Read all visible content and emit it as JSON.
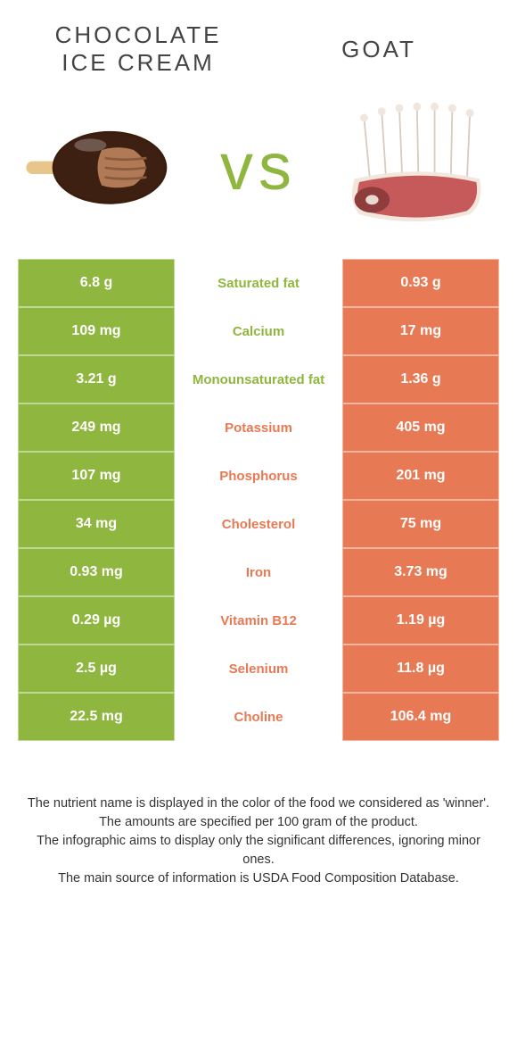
{
  "titles": {
    "left": "CHOCOLATE\nICE CREAM",
    "right": "GOAT"
  },
  "vs_text": "vs",
  "colors": {
    "left_bg": "#8fb63f",
    "right_bg": "#e77a54",
    "left_text_mid": "#8fb63f",
    "right_text_mid": "#e77a54",
    "vs_color": "#8fb63f"
  },
  "rows": [
    {
      "left": "6.8 g",
      "label": "Saturated fat",
      "right": "0.93 g",
      "winner": "left"
    },
    {
      "left": "109 mg",
      "label": "Calcium",
      "right": "17 mg",
      "winner": "left"
    },
    {
      "left": "3.21 g",
      "label": "Monounsaturated fat",
      "right": "1.36 g",
      "winner": "left"
    },
    {
      "left": "249 mg",
      "label": "Potassium",
      "right": "405 mg",
      "winner": "right"
    },
    {
      "left": "107 mg",
      "label": "Phosphorus",
      "right": "201 mg",
      "winner": "right"
    },
    {
      "left": "34 mg",
      "label": "Cholesterol",
      "right": "75 mg",
      "winner": "right"
    },
    {
      "left": "0.93 mg",
      "label": "Iron",
      "right": "3.73 mg",
      "winner": "right"
    },
    {
      "left": "0.29 µg",
      "label": "Vitamin B12",
      "right": "1.19 µg",
      "winner": "right"
    },
    {
      "left": "2.5 µg",
      "label": "Selenium",
      "right": "11.8 µg",
      "winner": "right"
    },
    {
      "left": "22.5 mg",
      "label": "Choline",
      "right": "106.4 mg",
      "winner": "right"
    }
  ],
  "footnotes": [
    "The nutrient name is displayed in the color of the food we considered as 'winner'.",
    "The amounts are specified per 100 gram of the product.",
    "The infographic aims to display only the significant differences, ignoring minor ones.",
    "The main source of information is USDA Food Composition Database."
  ]
}
